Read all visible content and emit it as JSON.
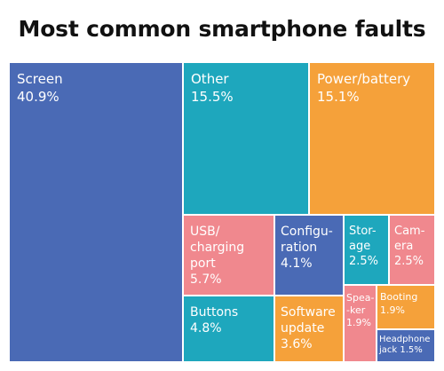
{
  "chart_data": {
    "type": "treemap",
    "title": "Most common smartphone faults",
    "units": "%",
    "items": [
      {
        "label_lines": [
          "Screen"
        ],
        "value": 40.9,
        "value_text": "40.9%",
        "color": "#4a6ab5"
      },
      {
        "label_lines": [
          "Other"
        ],
        "value": 15.5,
        "value_text": "15.5%",
        "color": "#1ea7bd"
      },
      {
        "label_lines": [
          "Power/battery"
        ],
        "value": 15.1,
        "value_text": "15.1%",
        "color": "#f5a13a"
      },
      {
        "label_lines": [
          "USB/",
          "charging",
          "port"
        ],
        "value": 5.7,
        "value_text": "5.7%",
        "color": "#f0888e"
      },
      {
        "label_lines": [
          "Buttons"
        ],
        "value": 4.8,
        "value_text": "4.8%",
        "color": "#1ea7bd"
      },
      {
        "label_lines": [
          "Configu-",
          "ration"
        ],
        "value": 4.1,
        "value_text": "4.1%",
        "color": "#4a6ab5"
      },
      {
        "label_lines": [
          "Software",
          "update"
        ],
        "value": 3.6,
        "value_text": "3.6%",
        "color": "#f5a13a"
      },
      {
        "label_lines": [
          "Stor-",
          "age"
        ],
        "value": 2.5,
        "value_text": "2.5%",
        "color": "#1ea7bd"
      },
      {
        "label_lines": [
          "Cam-",
          "era"
        ],
        "value": 2.5,
        "value_text": "2.5%",
        "color": "#f0888e"
      },
      {
        "label_lines": [
          "Spea-",
          "-ker"
        ],
        "value": 1.9,
        "value_text": "1.9%",
        "color": "#f0888e"
      },
      {
        "label_lines": [
          "Booting"
        ],
        "value": 1.9,
        "value_text": "1.9%",
        "color": "#f5a13a"
      },
      {
        "label_lines": [
          "Headphone",
          "jack"
        ],
        "value": 1.5,
        "value_text": "1.5%",
        "color": "#4a6ab5"
      }
    ]
  }
}
